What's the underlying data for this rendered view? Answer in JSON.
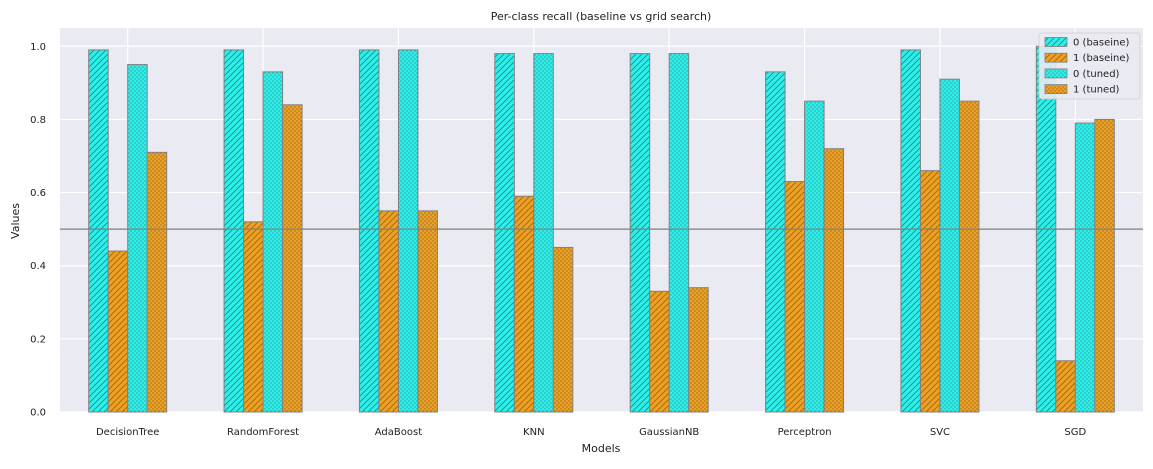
{
  "chart_data": {
    "type": "bar",
    "title": "Per-class recall (baseline vs grid search)",
    "xlabel": "Models",
    "ylabel": "Values",
    "categories": [
      "DecisionTree",
      "RandomForest",
      "AdaBoost",
      "KNN",
      "GaussianNB",
      "Perceptron",
      "SVC",
      "SGD"
    ],
    "series": [
      {
        "name": "0 (baseine)",
        "values": [
          0.99,
          0.99,
          0.99,
          0.98,
          0.98,
          0.93,
          0.99,
          1.0
        ],
        "color": "#22f5f0",
        "hatch": "diagonal"
      },
      {
        "name": "1 (baseine)",
        "values": [
          0.44,
          0.52,
          0.55,
          0.59,
          0.33,
          0.63,
          0.66,
          0.14
        ],
        "color": "#f0a020",
        "hatch": "diagonal"
      },
      {
        "name": "0 (tuned)",
        "values": [
          0.95,
          0.93,
          0.99,
          0.98,
          0.98,
          0.85,
          0.91,
          0.79
        ],
        "color": "#22f5f0",
        "hatch": "dots"
      },
      {
        "name": "1 (tuned)",
        "values": [
          0.71,
          0.84,
          0.55,
          0.45,
          0.34,
          0.72,
          0.85,
          0.8
        ],
        "color": "#f0a020",
        "hatch": "dots"
      }
    ],
    "ylim": [
      0,
      1.05
    ],
    "yticks": [
      "0.0",
      "0.2",
      "0.4",
      "0.6",
      "0.8",
      "1.0"
    ],
    "reference_line": 0.5,
    "grid": true,
    "legend_position": "top-right",
    "background_color": "#eaeaf2",
    "edge_color": "#808080",
    "reference_line_color": "#808080"
  }
}
